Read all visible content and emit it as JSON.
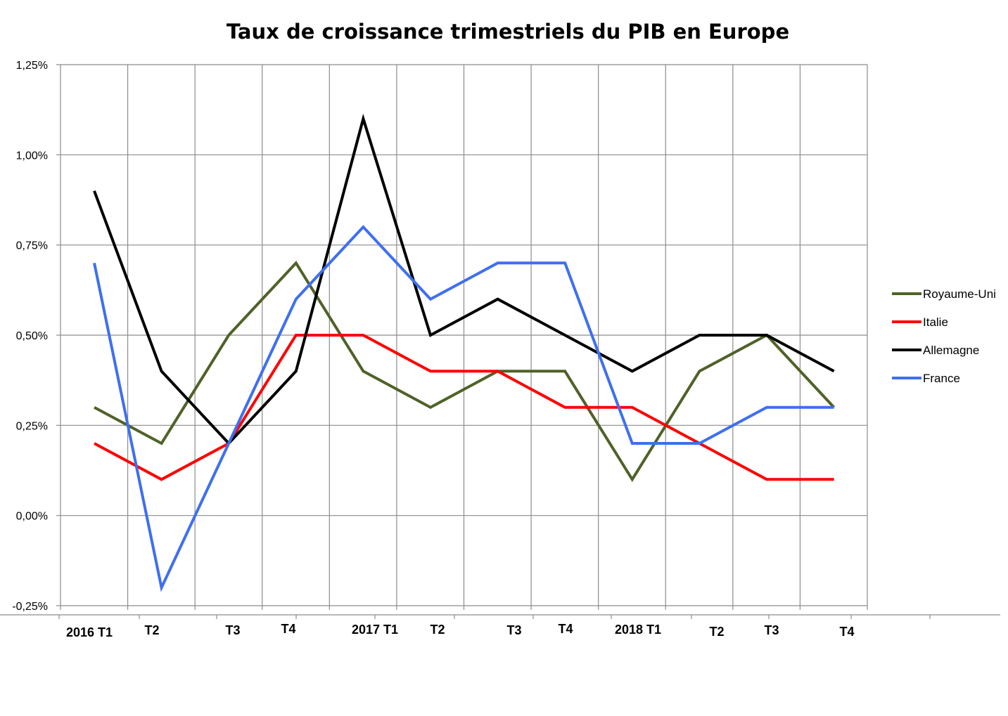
{
  "chart_data": {
    "type": "line",
    "title": "Taux de croissance trimestriels du PIB en Europe",
    "xlabel": "",
    "ylabel": "",
    "ylim": [
      -0.25,
      1.25
    ],
    "yticks": [
      -0.25,
      0.0,
      0.25,
      0.5,
      0.75,
      1.0,
      1.25
    ],
    "ytick_labels": [
      "-0,25%",
      "0,00%",
      "0,25%",
      "0,50%",
      "0,75%",
      "1,00%",
      "1,25%"
    ],
    "categories": [
      "2016 T1",
      "T2",
      "T3",
      "T4",
      "2017 T1",
      "T2",
      "T3",
      "T4",
      "2018 T1",
      "T2",
      "T3",
      "T4"
    ],
    "grid": true,
    "legend_position": "right",
    "series": [
      {
        "name": "Royaume-Uni",
        "color": "#4f6228",
        "values": [
          0.3,
          0.2,
          0.5,
          0.7,
          0.4,
          0.3,
          0.4,
          0.4,
          0.1,
          0.4,
          0.5,
          0.3
        ]
      },
      {
        "name": "Italie",
        "color": "#ff0000",
        "values": [
          0.2,
          0.1,
          0.2,
          0.5,
          0.5,
          0.4,
          0.4,
          0.3,
          0.3,
          0.2,
          0.1,
          0.1
        ]
      },
      {
        "name": "Allemagne",
        "color": "#000000",
        "values": [
          0.9,
          0.4,
          0.2,
          0.4,
          1.1,
          0.5,
          0.6,
          0.5,
          0.4,
          0.5,
          0.5,
          0.4
        ]
      },
      {
        "name": "France",
        "color": "#3f6ff0",
        "values": [
          0.7,
          -0.2,
          0.2,
          0.6,
          0.8,
          0.6,
          0.7,
          0.7,
          0.2,
          0.2,
          0.3,
          0.3
        ]
      }
    ]
  }
}
